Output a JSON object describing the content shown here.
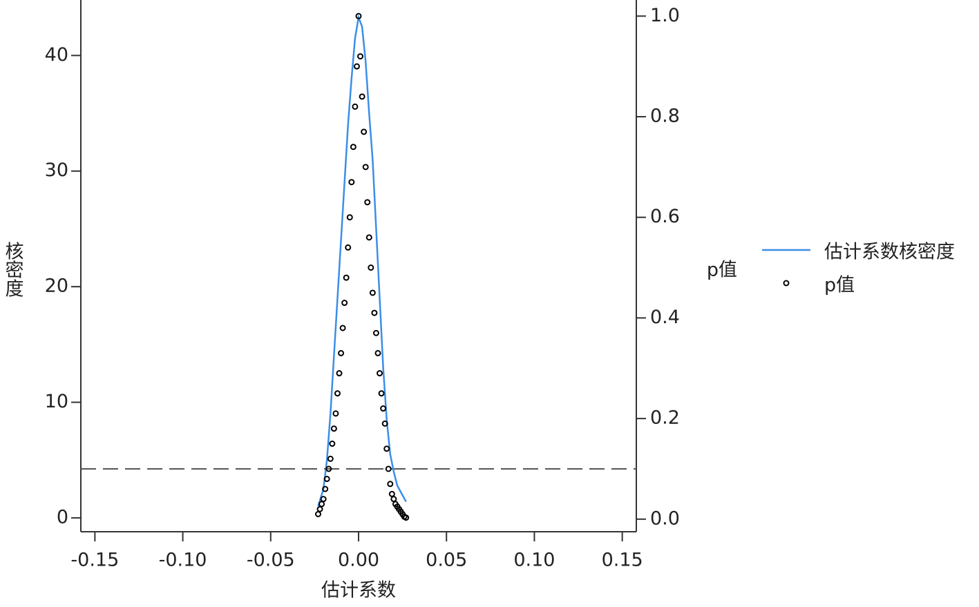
{
  "chart_data": {
    "type": "line",
    "x_label": "估计系数",
    "y_label": "核密度",
    "y2_label": "p值",
    "xlim": [
      -0.158,
      0.158
    ],
    "ylim": [
      -1.2,
      44.8
    ],
    "y2lim": [
      -0.025,
      1.032
    ],
    "xticks": [
      {
        "value": -0.15,
        "label": "-0.15"
      },
      {
        "value": -0.1,
        "label": "-0.10"
      },
      {
        "value": -0.05,
        "label": "-0.05"
      },
      {
        "value": 0,
        "label": "0.00"
      },
      {
        "value": 0.05,
        "label": "0.05"
      },
      {
        "value": 0.1,
        "label": "0.10"
      },
      {
        "value": 0.15,
        "label": "0.15"
      }
    ],
    "yticks": [
      0,
      10,
      20,
      30,
      40
    ],
    "y2ticks": [
      {
        "value": 0,
        "label": "0.0"
      },
      {
        "value": 0.2,
        "label": "0.2"
      },
      {
        "value": 0.4,
        "label": "0.4"
      },
      {
        "value": 0.6,
        "label": "0.6"
      },
      {
        "value": 0.8,
        "label": "0.8"
      },
      {
        "value": 1,
        "label": "1.0"
      }
    ],
    "reference_line": {
      "value": 0.1,
      "axis": "y2",
      "color": "#555555"
    },
    "legend": "right",
    "series": [
      {
        "name": "估计系数核密度",
        "type": "line",
        "color": "#3a8ee6",
        "x": [
          -0.023,
          -0.02,
          -0.018,
          -0.016,
          -0.014,
          -0.012,
          -0.01,
          -0.008,
          -0.006,
          -0.004,
          -0.002,
          0,
          0.002,
          0.004,
          0.006,
          0.008,
          0.01,
          0.012,
          0.014,
          0.016,
          0.018,
          0.02,
          0.022,
          0.027
        ],
        "values": [
          1.0,
          2.5,
          5,
          9,
          14,
          19,
          24,
          29,
          34,
          38,
          41.5,
          43.3,
          42.5,
          39.5,
          35,
          31,
          25,
          19,
          13,
          8.5,
          5.5,
          4,
          2.8,
          1.4
        ]
      },
      {
        "name": "p值",
        "type": "scatter",
        "color": "#000000",
        "axis": "y2",
        "x": [
          -0.023,
          -0.022,
          -0.021,
          -0.02,
          -0.019,
          -0.018,
          -0.017,
          -0.016,
          -0.015,
          -0.014,
          -0.013,
          -0.012,
          -0.011,
          -0.01,
          -0.009,
          -0.008,
          -0.007,
          -0.006,
          -0.005,
          -0.004,
          -0.003,
          -0.002,
          -0.001,
          0,
          0.001,
          0.002,
          0.003,
          0.004,
          0.005,
          0.006,
          0.007,
          0.008,
          0.009,
          0.01,
          0.011,
          0.012,
          0.013,
          0.014,
          0.015,
          0.016,
          0.017,
          0.018,
          0.019,
          0.02,
          0.021,
          0.022,
          0.023,
          0.024,
          0.025,
          0.026,
          0.027
        ],
        "values": [
          0.01,
          0.02,
          0.03,
          0.04,
          0.06,
          0.08,
          0.1,
          0.12,
          0.15,
          0.18,
          0.21,
          0.25,
          0.29,
          0.33,
          0.38,
          0.43,
          0.48,
          0.54,
          0.6,
          0.67,
          0.74,
          0.82,
          0.9,
          1.0,
          0.92,
          0.84,
          0.77,
          0.7,
          0.63,
          0.56,
          0.5,
          0.45,
          0.41,
          0.37,
          0.33,
          0.29,
          0.25,
          0.22,
          0.19,
          0.14,
          0.1,
          0.07,
          0.05,
          0.04,
          0.03,
          0.025,
          0.02,
          0.015,
          0.01,
          0.005,
          0.003
        ]
      }
    ]
  }
}
